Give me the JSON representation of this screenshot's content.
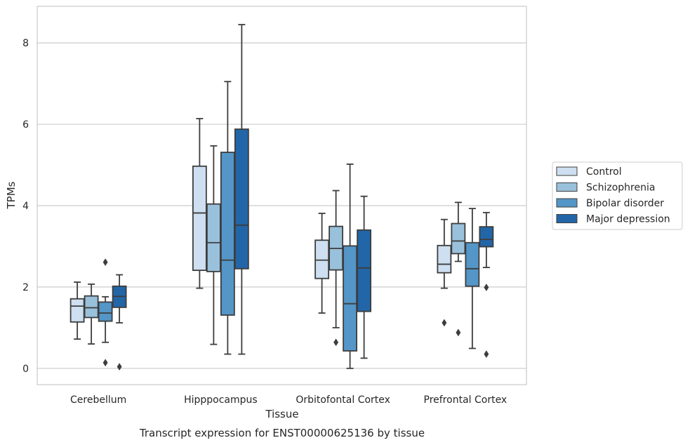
{
  "chart_data": {
    "type": "boxplot",
    "xlabel": "Tissue",
    "ylabel": "TPMs",
    "caption": "Transcript expression for ENST00000625136 by tissue",
    "ylim": [
      -0.4,
      8.9
    ],
    "yticks": [
      0,
      2,
      4,
      6,
      8
    ],
    "grid": true,
    "legend_position": "right",
    "categories": [
      "Cerebellum",
      "Hipppocampus",
      "Orbitofontal Cortex",
      "Prefrontal Cortex"
    ],
    "series": [
      {
        "name": "Control",
        "color": "#cddff0",
        "boxes": [
          {
            "whislo": 0.72,
            "q1": 1.14,
            "med": 1.53,
            "q3": 1.71,
            "whishi": 2.12,
            "fliers": []
          },
          {
            "whislo": 1.97,
            "q1": 2.41,
            "med": 3.82,
            "q3": 4.97,
            "whishi": 6.14,
            "fliers": []
          },
          {
            "whislo": 1.36,
            "q1": 2.21,
            "med": 2.66,
            "q3": 3.15,
            "whishi": 3.81,
            "fliers": []
          },
          {
            "whislo": 1.97,
            "q1": 2.35,
            "med": 2.56,
            "q3": 3.02,
            "whishi": 3.66,
            "fliers": [
              1.12
            ]
          }
        ]
      },
      {
        "name": "Schizophrenia",
        "color": "#9ac1db",
        "boxes": [
          {
            "whislo": 0.6,
            "q1": 1.25,
            "med": 1.49,
            "q3": 1.78,
            "whishi": 2.07,
            "fliers": []
          },
          {
            "whislo": 0.59,
            "q1": 2.38,
            "med": 3.09,
            "q3": 4.04,
            "whishi": 5.47,
            "fliers": []
          },
          {
            "whislo": 1.0,
            "q1": 2.42,
            "med": 2.95,
            "q3": 3.49,
            "whishi": 4.37,
            "fliers": [
              0.64
            ]
          },
          {
            "whislo": 2.63,
            "q1": 2.82,
            "med": 3.13,
            "q3": 3.56,
            "whishi": 4.08,
            "fliers": [
              0.88
            ]
          }
        ]
      },
      {
        "name": "Bipolar disorder",
        "color": "#5496c8",
        "boxes": [
          {
            "whislo": 0.64,
            "q1": 1.16,
            "med": 1.36,
            "q3": 1.63,
            "whishi": 1.76,
            "fliers": [
              2.61,
              0.14
            ]
          },
          {
            "whislo": 0.35,
            "q1": 1.31,
            "med": 2.66,
            "q3": 5.31,
            "whishi": 7.05,
            "fliers": []
          },
          {
            "whislo": 0.0,
            "q1": 0.43,
            "med": 1.59,
            "q3": 3.01,
            "whishi": 5.02,
            "fliers": []
          },
          {
            "whislo": 0.49,
            "q1": 2.02,
            "med": 2.45,
            "q3": 3.09,
            "whishi": 3.93,
            "fliers": []
          }
        ]
      },
      {
        "name": "Major depression",
        "color": "#2266a8",
        "boxes": [
          {
            "whislo": 1.12,
            "q1": 1.5,
            "med": 1.77,
            "q3": 2.02,
            "whishi": 2.3,
            "fliers": [
              0.04
            ]
          },
          {
            "whislo": 0.35,
            "q1": 2.45,
            "med": 3.52,
            "q3": 5.88,
            "whishi": 8.45,
            "fliers": []
          },
          {
            "whislo": 0.25,
            "q1": 1.4,
            "med": 2.47,
            "q3": 3.4,
            "whishi": 4.23,
            "fliers": []
          },
          {
            "whislo": 2.48,
            "q1": 2.99,
            "med": 3.17,
            "q3": 3.48,
            "whishi": 3.83,
            "fliers": [
              1.99,
              0.35
            ]
          }
        ]
      }
    ]
  }
}
